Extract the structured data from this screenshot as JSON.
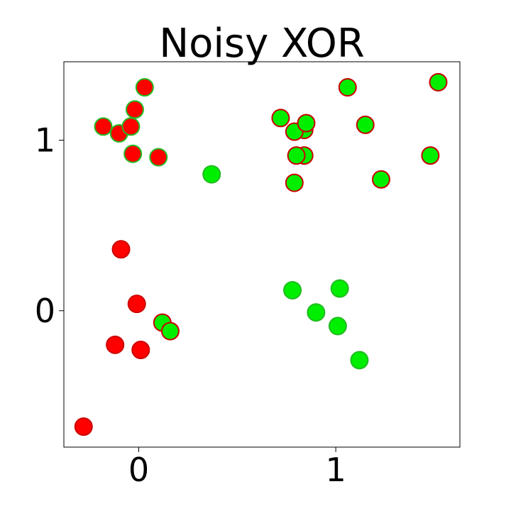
{
  "chart_data": {
    "type": "scatter",
    "title": "Noisy XOR",
    "xlabel": "",
    "ylabel": "",
    "xlim": [
      -0.38,
      1.63
    ],
    "ylim": [
      -0.8,
      1.46
    ],
    "grid": false,
    "legend": "none",
    "x_ticks": [
      {
        "value": 0,
        "label": "0"
      },
      {
        "value": 1,
        "label": "1"
      }
    ],
    "y_ticks": [
      {
        "value": 0,
        "label": "0"
      },
      {
        "value": 1,
        "label": "1"
      }
    ],
    "colors": {
      "red": "#ff0000",
      "green": "#00ee00",
      "red_edge": "#cc0000",
      "green_edge": "#22bb22"
    },
    "points": [
      {
        "x": -0.28,
        "y": -0.68,
        "fill": "red",
        "edge": "red"
      },
      {
        "x": -0.12,
        "y": -0.2,
        "fill": "red",
        "edge": "red"
      },
      {
        "x": 0.01,
        "y": -0.23,
        "fill": "red",
        "edge": "red"
      },
      {
        "x": -0.01,
        "y": 0.04,
        "fill": "red",
        "edge": "red"
      },
      {
        "x": -0.09,
        "y": 0.36,
        "fill": "red",
        "edge": "red"
      },
      {
        "x": 0.12,
        "y": -0.07,
        "fill": "green",
        "edge": "red"
      },
      {
        "x": 0.16,
        "y": -0.12,
        "fill": "green",
        "edge": "red"
      },
      {
        "x": 0.37,
        "y": 0.8,
        "fill": "green",
        "edge": "green"
      },
      {
        "x": -0.18,
        "y": 1.08,
        "fill": "red",
        "edge": "green"
      },
      {
        "x": -0.1,
        "y": 1.04,
        "fill": "red",
        "edge": "green"
      },
      {
        "x": -0.04,
        "y": 1.08,
        "fill": "red",
        "edge": "green"
      },
      {
        "x": -0.02,
        "y": 1.18,
        "fill": "red",
        "edge": "green"
      },
      {
        "x": 0.03,
        "y": 1.31,
        "fill": "red",
        "edge": "green"
      },
      {
        "x": -0.03,
        "y": 0.92,
        "fill": "red",
        "edge": "green"
      },
      {
        "x": 0.1,
        "y": 0.9,
        "fill": "red",
        "edge": "green"
      },
      {
        "x": 0.72,
        "y": 1.13,
        "fill": "green",
        "edge": "red"
      },
      {
        "x": 0.84,
        "y": 1.06,
        "fill": "green",
        "edge": "red"
      },
      {
        "x": 0.79,
        "y": 1.05,
        "fill": "green",
        "edge": "red"
      },
      {
        "x": 0.85,
        "y": 1.1,
        "fill": "green",
        "edge": "red"
      },
      {
        "x": 0.84,
        "y": 0.91,
        "fill": "green",
        "edge": "red"
      },
      {
        "x": 0.8,
        "y": 0.91,
        "fill": "green",
        "edge": "red"
      },
      {
        "x": 0.79,
        "y": 0.75,
        "fill": "green",
        "edge": "red"
      },
      {
        "x": 1.06,
        "y": 1.31,
        "fill": "green",
        "edge": "red"
      },
      {
        "x": 1.15,
        "y": 1.09,
        "fill": "green",
        "edge": "red"
      },
      {
        "x": 1.23,
        "y": 0.77,
        "fill": "green",
        "edge": "red"
      },
      {
        "x": 1.48,
        "y": 0.91,
        "fill": "green",
        "edge": "red"
      },
      {
        "x": 1.52,
        "y": 1.34,
        "fill": "green",
        "edge": "red"
      },
      {
        "x": 0.78,
        "y": 0.12,
        "fill": "green",
        "edge": "green"
      },
      {
        "x": 0.9,
        "y": -0.01,
        "fill": "green",
        "edge": "green"
      },
      {
        "x": 1.02,
        "y": 0.13,
        "fill": "green",
        "edge": "green"
      },
      {
        "x": 1.01,
        "y": -0.09,
        "fill": "green",
        "edge": "green"
      },
      {
        "x": 1.12,
        "y": -0.29,
        "fill": "green",
        "edge": "green"
      }
    ]
  }
}
